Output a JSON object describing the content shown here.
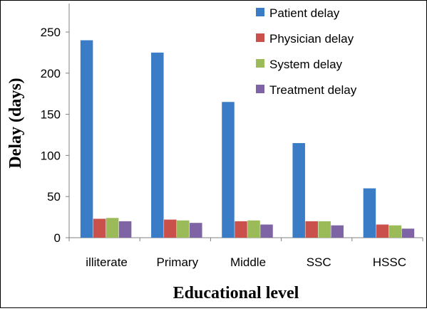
{
  "chart_data": {
    "type": "bar",
    "xlabel": "Educational level",
    "ylabel": "Delay (days)",
    "categories": [
      "illiterate",
      "Primary",
      "Middle",
      "SSC",
      "HSSC"
    ],
    "ylim": [
      0,
      250
    ],
    "yticks": [
      0,
      50,
      100,
      150,
      200,
      250
    ],
    "grid": false,
    "legend_position": "top-right",
    "series": [
      {
        "name": "Patient delay",
        "color": "#3a7dc6",
        "values": [
          240,
          225,
          165,
          115,
          60
        ]
      },
      {
        "name": "Physician delay",
        "color": "#c9504b",
        "values": [
          23,
          22,
          20,
          20,
          16
        ]
      },
      {
        "name": "System delay",
        "color": "#9bbb59",
        "values": [
          24,
          21,
          21,
          20,
          15
        ]
      },
      {
        "name": "Treatment delay",
        "color": "#7e64a5",
        "values": [
          20,
          18,
          16,
          15,
          11
        ]
      }
    ]
  }
}
